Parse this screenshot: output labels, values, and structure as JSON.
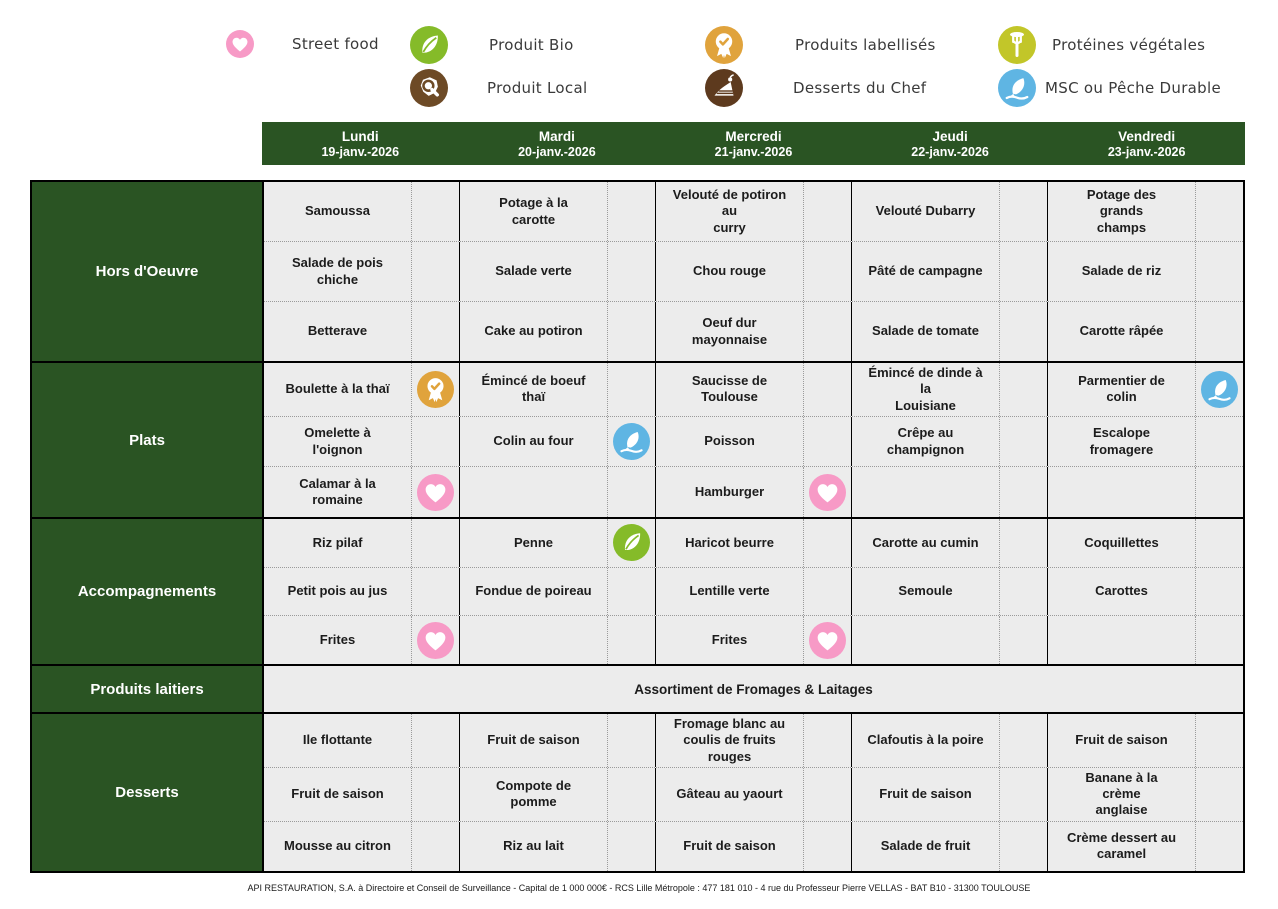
{
  "colors": {
    "header_green": "#2a5423",
    "cell_bg": "#ececec"
  },
  "legend": {
    "items": [
      {
        "label": "Street food",
        "icon": "heart",
        "color": "#f79ac6"
      },
      {
        "label": "Produit Bio",
        "icon": "leaf",
        "color": "#85bb29"
      },
      {
        "label": "Produit Local",
        "icon": "map-magnifier",
        "color": "#6d4a26"
      },
      {
        "label": "Produits labellisés",
        "icon": "medal",
        "color": "#e0a33c"
      },
      {
        "label": "Desserts du Chef",
        "icon": "cake",
        "color": "#5d3a1e"
      },
      {
        "label": "Protéines végétales",
        "icon": "fork",
        "color": "#c2c629"
      },
      {
        "label": "MSC ou Pêche Durable",
        "icon": "fish",
        "color": "#5fb5e3"
      }
    ]
  },
  "days": [
    {
      "name": "Lundi",
      "date": "19-janv.-2026"
    },
    {
      "name": "Mardi",
      "date": "20-janv.-2026"
    },
    {
      "name": "Mercredi",
      "date": "21-janv.-2026"
    },
    {
      "name": "Jeudi",
      "date": "22-janv.-2026"
    },
    {
      "name": "Vendredi",
      "date": "23-janv.-2026"
    }
  ],
  "categories": [
    {
      "label": "Hors d'Oeuvre",
      "rows": [
        [
          {
            "text": "Samoussa"
          },
          {
            "text": "Potage à la\ncarotte"
          },
          {
            "text": "Velouté de potiron\nau\ncurry"
          },
          {
            "text": "Velouté Dubarry"
          },
          {
            "text": "Potage des\ngrands\nchamps"
          }
        ],
        [
          {
            "text": "Salade de pois\nchiche"
          },
          {
            "text": "Salade verte"
          },
          {
            "text": "Chou rouge"
          },
          {
            "text": "Pâté de campagne"
          },
          {
            "text": "Salade de riz"
          }
        ],
        [
          {
            "text": "Betterave"
          },
          {
            "text": "Cake au potiron"
          },
          {
            "text": "Oeuf dur\nmayonnaise"
          },
          {
            "text": "Salade de tomate"
          },
          {
            "text": "Carotte râpée"
          }
        ]
      ]
    },
    {
      "label": "Plats",
      "rows": [
        [
          {
            "text": "Boulette à la thaï",
            "icon": "medal"
          },
          {
            "text": "Émincé de boeuf\nthaï"
          },
          {
            "text": "Saucisse de\nToulouse"
          },
          {
            "text": "Émincé de dinde à\nla\nLouisiane"
          },
          {
            "text": "Parmentier de\ncolin",
            "icon": "fish"
          }
        ],
        [
          {
            "text": "Omelette à\nl'oignon"
          },
          {
            "text": "Colin au four",
            "icon": "fish"
          },
          {
            "text": "Poisson"
          },
          {
            "text": "Crêpe au\nchampignon"
          },
          {
            "text": "Escalope\nfromagere"
          }
        ],
        [
          {
            "text": "Calamar à la\nromaine",
            "icon": "heart"
          },
          {
            "text": ""
          },
          {
            "text": "Hamburger",
            "icon": "heart"
          },
          {
            "text": ""
          },
          {
            "text": ""
          }
        ]
      ]
    },
    {
      "label": "Accompagnements",
      "rows": [
        [
          {
            "text": "Riz pilaf"
          },
          {
            "text": "Penne",
            "icon": "leaf"
          },
          {
            "text": "Haricot beurre"
          },
          {
            "text": "Carotte au cumin"
          },
          {
            "text": "Coquillettes"
          }
        ],
        [
          {
            "text": "Petit pois au jus"
          },
          {
            "text": "Fondue de poireau"
          },
          {
            "text": "Lentille verte"
          },
          {
            "text": "Semoule"
          },
          {
            "text": "Carottes"
          }
        ],
        [
          {
            "text": "Frites",
            "icon": "heart"
          },
          {
            "text": ""
          },
          {
            "text": "Frites",
            "icon": "heart"
          },
          {
            "text": ""
          },
          {
            "text": ""
          }
        ]
      ]
    },
    {
      "label": "Produits laitiers",
      "span_text": "Assortiment de Fromages & Laitages"
    },
    {
      "label": "Desserts",
      "rows": [
        [
          {
            "text": "Ile flottante"
          },
          {
            "text": "Fruit de saison"
          },
          {
            "text": "Fromage blanc au\ncoulis de fruits\nrouges"
          },
          {
            "text": "Clafoutis à la poire"
          },
          {
            "text": "Fruit de saison"
          }
        ],
        [
          {
            "text": "Fruit de saison"
          },
          {
            "text": "Compote de\npomme"
          },
          {
            "text": "Gâteau au yaourt"
          },
          {
            "text": "Fruit de saison"
          },
          {
            "text": "Banane à la\ncrème\nanglaise"
          }
        ],
        [
          {
            "text": "Mousse au citron"
          },
          {
            "text": "Riz au lait"
          },
          {
            "text": "Fruit de saison"
          },
          {
            "text": "Salade de fruit"
          },
          {
            "text": "Crème dessert au\ncaramel"
          }
        ]
      ]
    }
  ],
  "footer": {
    "text": "API RESTAURATION, S.A. à Directoire et Conseil de Surveillance - Capital de 1 000 000€ - RCS Lille Métropole : 477 181 010 - 4 rue du Professeur Pierre VELLAS - BAT B10 - 31300 TOULOUSE"
  }
}
